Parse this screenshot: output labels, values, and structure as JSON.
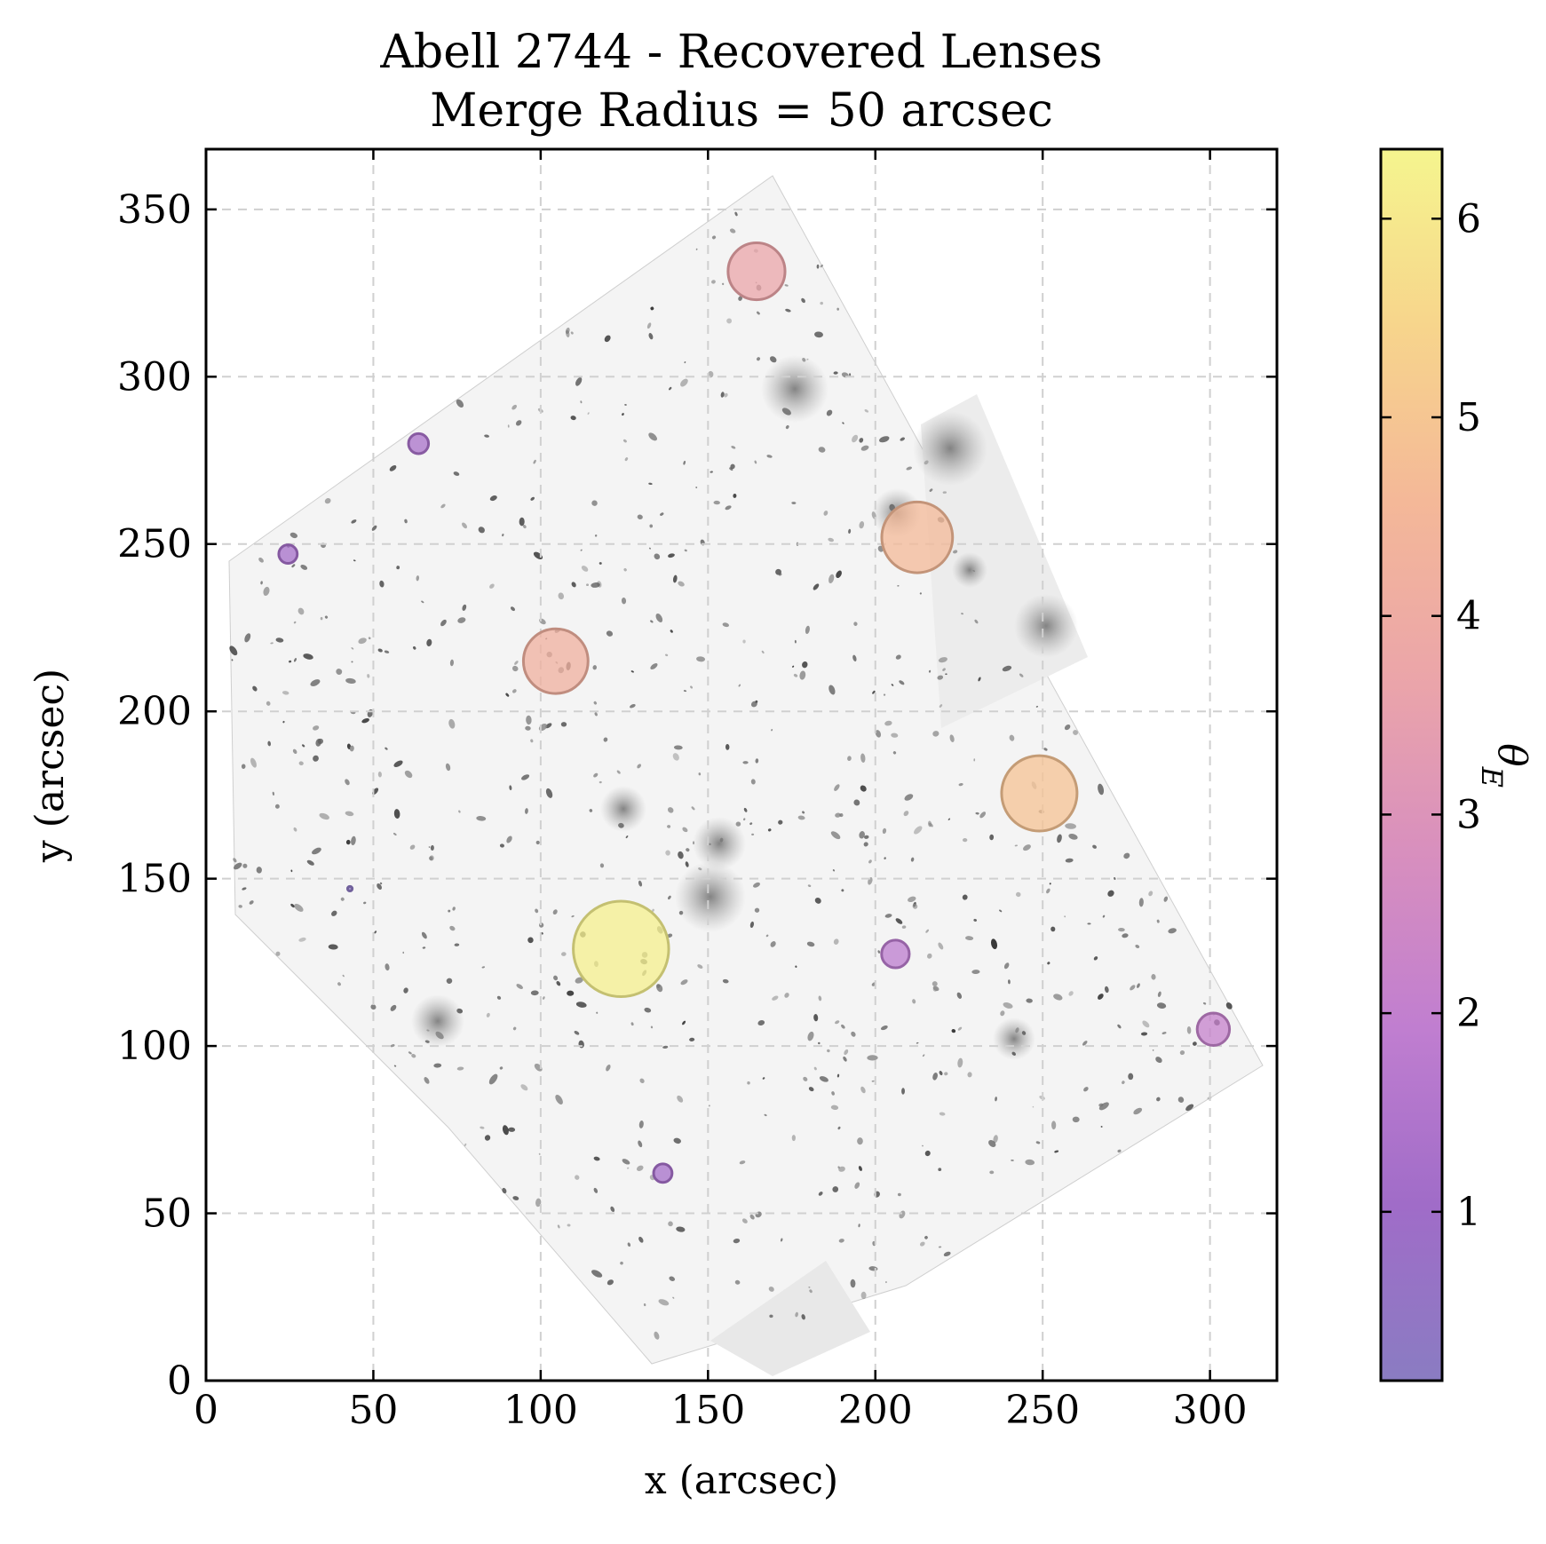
{
  "chart_data": {
    "type": "scatter",
    "title": "Abell 2744 - Recovered Lenses",
    "subtitle": "Merge Radius = 50 arcsec",
    "xlabel": "x (arcsec)",
    "ylabel": "y (arcsec)",
    "xlim": [
      0,
      320
    ],
    "ylim": [
      0,
      368
    ],
    "xticks": [
      0,
      50,
      100,
      150,
      200,
      250,
      300
    ],
    "yticks": [
      0,
      50,
      100,
      150,
      200,
      250,
      300,
      350
    ],
    "grid": true,
    "background": "grayscale HST image of Abell 2744 cluster field",
    "colorbar": {
      "label": "θE",
      "range": [
        0.15,
        6.35
      ],
      "ticks": [
        1,
        2,
        3,
        4,
        5,
        6
      ],
      "colormap": "plasma (alpha 0.5)",
      "colors": [
        "#8a7cc2",
        "#a06cc8",
        "#c07ed0",
        "#d88fbe",
        "#eba5a9",
        "#f4b898",
        "#f7d58c",
        "#f5f58e"
      ]
    },
    "points": [
      {
        "x": 164.5,
        "y": 331.5,
        "theta_e": 3.7
      },
      {
        "x": 63.5,
        "y": 280.0,
        "theta_e": 1.3
      },
      {
        "x": 24.5,
        "y": 247.0,
        "theta_e": 1.2
      },
      {
        "x": 212.5,
        "y": 252.0,
        "theta_e": 4.6
      },
      {
        "x": 104.5,
        "y": 215.0,
        "theta_e": 4.2
      },
      {
        "x": 249.0,
        "y": 175.5,
        "theta_e": 4.9
      },
      {
        "x": 43.0,
        "y": 147.0,
        "theta_e": 0.3
      },
      {
        "x": 124.0,
        "y": 129.0,
        "theta_e": 6.2
      },
      {
        "x": 206.0,
        "y": 127.5,
        "theta_e": 1.8
      },
      {
        "x": 301.0,
        "y": 105.0,
        "theta_e": 2.1
      },
      {
        "x": 136.5,
        "y": 62.0,
        "theta_e": 1.2
      }
    ]
  }
}
